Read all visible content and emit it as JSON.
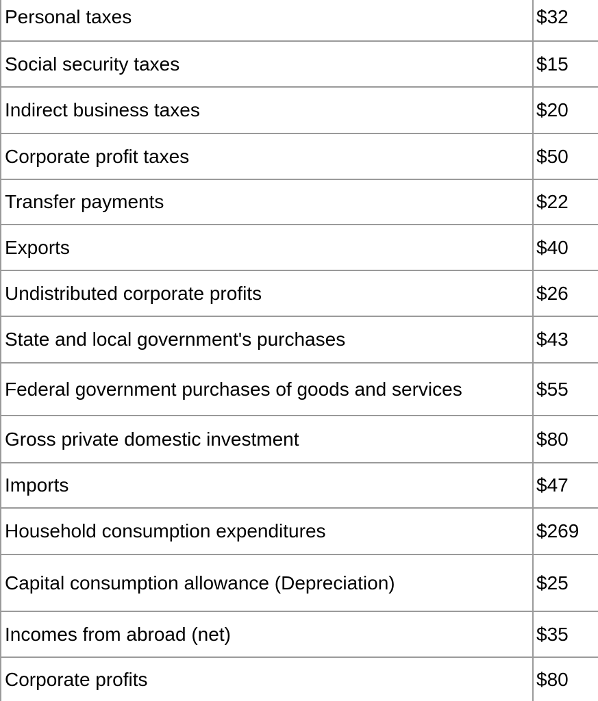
{
  "table": {
    "rows": [
      [
        "Personal taxes",
        "$32"
      ],
      [
        "Social security taxes",
        "$15"
      ],
      [
        "Indirect business taxes",
        "$20"
      ],
      [
        "Corporate profit taxes",
        "$50"
      ],
      [
        "Transfer payments",
        "$22"
      ],
      [
        "Exports",
        "$40"
      ],
      [
        "Undistributed corporate profits",
        "$26"
      ],
      [
        "State and local government's purchases",
        "$43"
      ],
      [
        "Federal government purchases of goods and services",
        "$55"
      ],
      [
        "Gross private domestic investment",
        "$80"
      ],
      [
        "Imports",
        "$47"
      ],
      [
        "Household consumption expenditures",
        "$269"
      ],
      [
        "Capital consumption allowance (Depreciation)",
        "$25"
      ],
      [
        "Incomes from abroad (net)",
        "$35"
      ],
      [
        "Corporate profits",
        "$80"
      ]
    ]
  }
}
